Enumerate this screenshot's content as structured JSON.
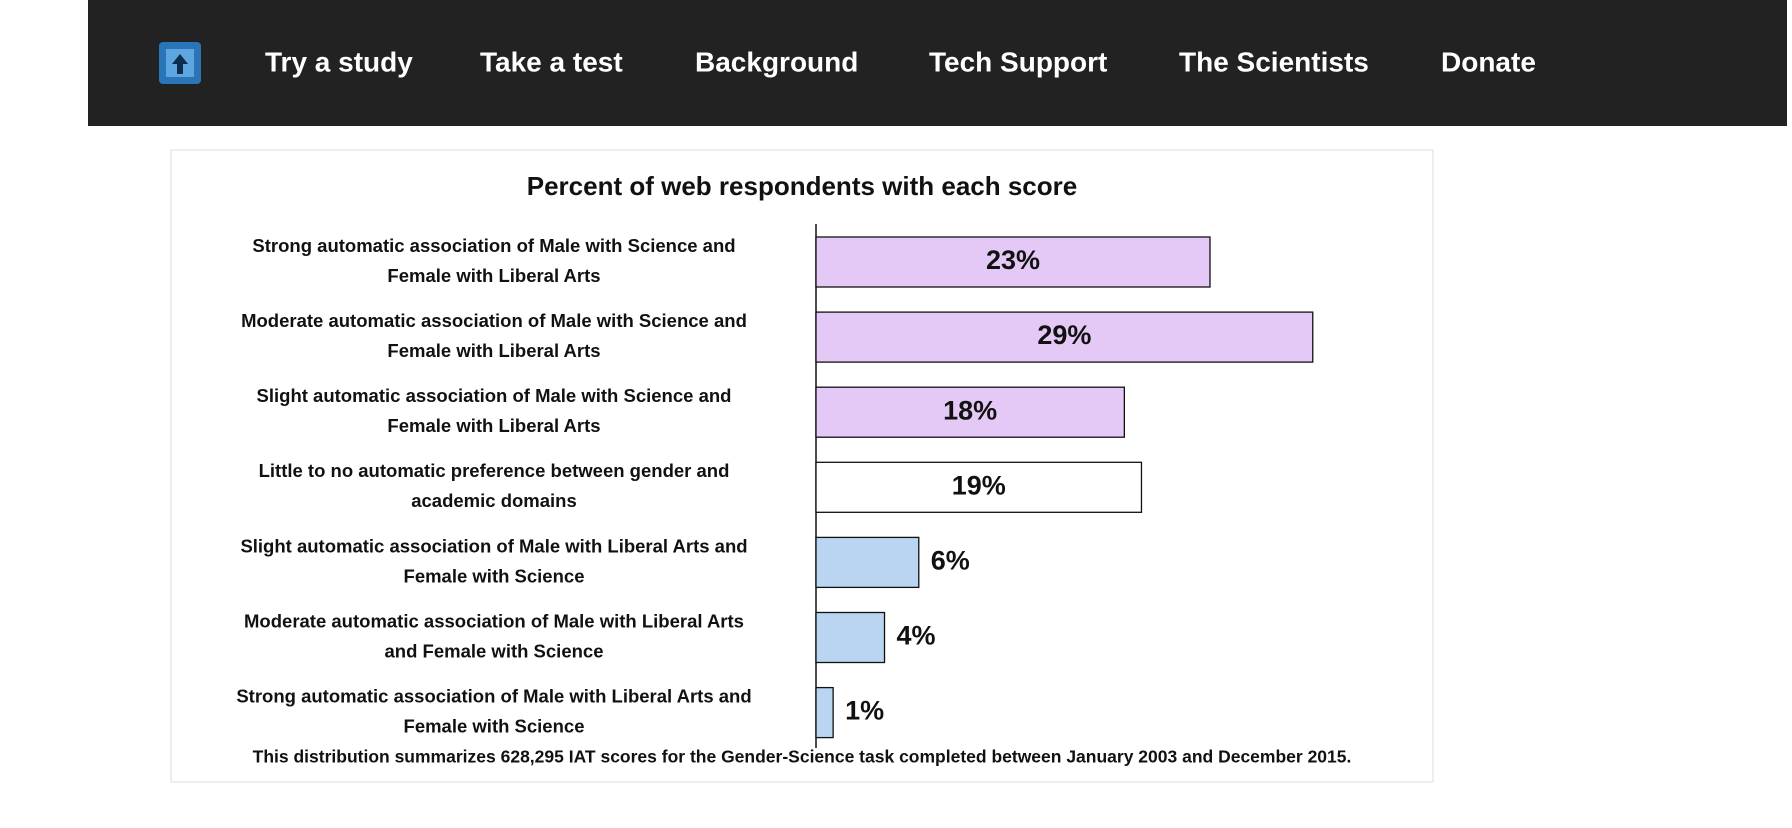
{
  "nav": {
    "items": [
      "Try a study",
      "Take a test",
      "Background",
      "Tech Support",
      "The Scientists",
      "Donate"
    ]
  },
  "chart_data": {
    "type": "bar",
    "orientation": "horizontal",
    "title": "Percent of web respondents with each score",
    "categories": [
      [
        "Strong automatic association of Male with Science and",
        "Female with Liberal Arts"
      ],
      [
        "Moderate automatic association of Male with Science and",
        "Female with Liberal Arts"
      ],
      [
        "Slight automatic association of Male with Science and",
        "Female with Liberal Arts"
      ],
      [
        "Little to no automatic preference between gender and",
        "academic domains"
      ],
      [
        "Slight automatic association of Male with Liberal Arts and",
        "Female with Science"
      ],
      [
        "Moderate automatic association of Male with Liberal Arts",
        "and Female with Science"
      ],
      [
        "Strong automatic association of Male with Liberal Arts and",
        "Female with Science"
      ]
    ],
    "values": [
      23,
      29,
      18,
      19,
      6,
      4,
      1
    ],
    "value_labels": [
      "23%",
      "29%",
      "18%",
      "19%",
      "6%",
      "4%",
      "1%"
    ],
    "colors": [
      "#e4c9f6",
      "#e4c9f6",
      "#e4c9f6",
      "#ffffff",
      "#b9d5f1",
      "#b9d5f1",
      "#b9d5f1"
    ],
    "note": "This distribution summarizes 628,295 IAT scores for the Gender-Science task completed between January 2003 and December 2015."
  }
}
